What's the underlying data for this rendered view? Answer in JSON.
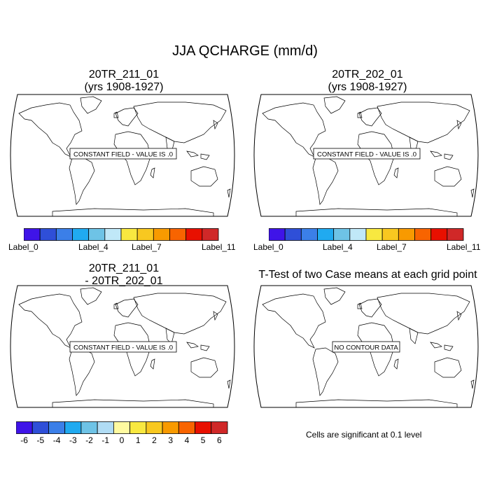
{
  "main_title": "JJA QCHARGE (mm/d)",
  "panels": [
    {
      "title_line1": "20TR_211_01",
      "title_line2": "(yrs 1908-1927)",
      "message": "CONSTANT FIELD - VALUE IS .0"
    },
    {
      "title_line1": "20TR_202_01",
      "title_line2": "(yrs 1908-1927)",
      "message": "CONSTANT FIELD - VALUE IS .0"
    },
    {
      "title_line1": "20TR_211_01",
      "title_line2": "- 20TR_202_01",
      "message": "CONSTANT FIELD - VALUE IS .0"
    },
    {
      "title_line1": "T-Test of two Case means at each grid point",
      "title_line2": "",
      "message": "NO CONTOUR DATA"
    }
  ],
  "colorbar_top": {
    "colors": [
      "#3f14e8",
      "#2f4fd8",
      "#3b7fe8",
      "#20aaf0",
      "#6ec3e6",
      "#c0e8f8",
      "#f8e840",
      "#f8c820",
      "#f89a00",
      "#f86400",
      "#e81000",
      "#d02828"
    ],
    "labels": [
      "Label_0",
      "Label_4",
      "Label_7",
      "Label_11"
    ]
  },
  "colorbar_bottom": {
    "colors": [
      "#3f14e8",
      "#2f4fd8",
      "#3b7fe8",
      "#20aaf0",
      "#6ec3e6",
      "#b0dcf4",
      "#fffaa0",
      "#f8e840",
      "#f8c820",
      "#f89a00",
      "#f86400",
      "#e81000",
      "#d02828"
    ],
    "labels": [
      "-6",
      "-5",
      "-4",
      "-3",
      "-2",
      "-1",
      "0",
      "1",
      "2",
      "3",
      "4",
      "5",
      "6"
    ]
  },
  "significance_note": "Cells are significant at 0.1 level"
}
